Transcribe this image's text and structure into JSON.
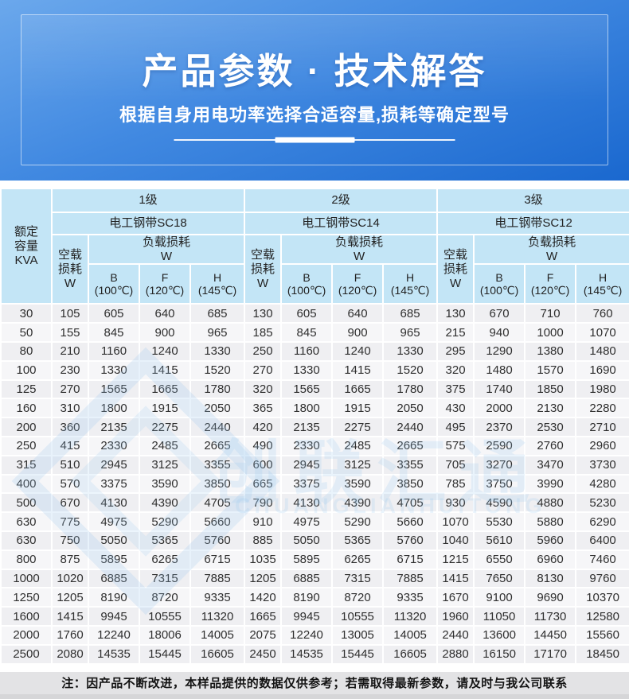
{
  "banner": {
    "title": "产品参数 · 技术解答",
    "subtitle": "根据自身用电功率选择合适容量,损耗等确定型号"
  },
  "colors": {
    "banner_blue_top": "#6BA8EC",
    "banner_blue_bottom": "#1A68CF",
    "table_header_blue": "#C3E5F6",
    "row_gray": "#EFEFF2",
    "note_bar_gray": "#E3E3E5"
  },
  "watermark": {
    "cn": "创联汇通",
    "en": "CHUANGLIANHUITONG"
  },
  "table": {
    "corner_header": {
      "line1": "额定",
      "line2": "容量",
      "line3": "KVA"
    },
    "groups": [
      {
        "level": "1级",
        "steel": "电工钢带SC18"
      },
      {
        "level": "2级",
        "steel": "电工钢带SC14"
      },
      {
        "level": "3级",
        "steel": "电工钢带SC12"
      }
    ],
    "no_load_header": {
      "line1": "空载",
      "line2": "损耗",
      "line3": "W"
    },
    "load_header": {
      "line1": "负载损耗",
      "line2": "W"
    },
    "temp_headers": [
      {
        "line1": "B",
        "line2": "(100℃)"
      },
      {
        "line1": "F",
        "line2": "(120℃)"
      },
      {
        "line1": "H",
        "line2": "(145℃)"
      }
    ],
    "rows": [
      {
        "kva": "30",
        "values": [
          "105",
          "605",
          "640",
          "685",
          "130",
          "605",
          "640",
          "685",
          "130",
          "670",
          "710",
          "760"
        ]
      },
      {
        "kva": "50",
        "values": [
          "155",
          "845",
          "900",
          "965",
          "185",
          "845",
          "900",
          "965",
          "215",
          "940",
          "1000",
          "1070"
        ]
      },
      {
        "kva": "80",
        "values": [
          "210",
          "1160",
          "1240",
          "1330",
          "250",
          "1160",
          "1240",
          "1330",
          "295",
          "1290",
          "1380",
          "1480"
        ]
      },
      {
        "kva": "100",
        "values": [
          "230",
          "1330",
          "1415",
          "1520",
          "270",
          "1330",
          "1415",
          "1520",
          "320",
          "1480",
          "1570",
          "1690"
        ]
      },
      {
        "kva": "125",
        "values": [
          "270",
          "1565",
          "1665",
          "1780",
          "320",
          "1565",
          "1665",
          "1780",
          "375",
          "1740",
          "1850",
          "1980"
        ]
      },
      {
        "kva": "160",
        "values": [
          "310",
          "1800",
          "1915",
          "2050",
          "365",
          "1800",
          "1915",
          "2050",
          "430",
          "2000",
          "2130",
          "2280"
        ]
      },
      {
        "kva": "200",
        "values": [
          "360",
          "2135",
          "2275",
          "2440",
          "420",
          "2135",
          "2275",
          "2440",
          "495",
          "2370",
          "2530",
          "2710"
        ]
      },
      {
        "kva": "250",
        "values": [
          "415",
          "2330",
          "2485",
          "2665",
          "490",
          "2330",
          "2485",
          "2665",
          "575",
          "2590",
          "2760",
          "2960"
        ]
      },
      {
        "kva": "315",
        "values": [
          "510",
          "2945",
          "3125",
          "3355",
          "600",
          "2945",
          "3125",
          "3355",
          "705",
          "3270",
          "3470",
          "3730"
        ]
      },
      {
        "kva": "400",
        "values": [
          "570",
          "3375",
          "3590",
          "3850",
          "665",
          "3375",
          "3590",
          "3850",
          "785",
          "3750",
          "3990",
          "4280"
        ]
      },
      {
        "kva": "500",
        "values": [
          "670",
          "4130",
          "4390",
          "4705",
          "790",
          "4130",
          "4390",
          "4705",
          "930",
          "4590",
          "4880",
          "5230"
        ]
      },
      {
        "kva": "630",
        "values": [
          "775",
          "4975",
          "5290",
          "5660",
          "910",
          "4975",
          "5290",
          "5660",
          "1070",
          "5530",
          "5880",
          "6290"
        ]
      },
      {
        "kva": "630",
        "values": [
          "750",
          "5050",
          "5365",
          "5760",
          "885",
          "5050",
          "5365",
          "5760",
          "1040",
          "5610",
          "5960",
          "6400"
        ]
      },
      {
        "kva": "800",
        "values": [
          "875",
          "5895",
          "6265",
          "6715",
          "1035",
          "5895",
          "6265",
          "6715",
          "1215",
          "6550",
          "6960",
          "7460"
        ]
      },
      {
        "kva": "1000",
        "values": [
          "1020",
          "6885",
          "7315",
          "7885",
          "1205",
          "6885",
          "7315",
          "7885",
          "1415",
          "7650",
          "8130",
          "9760"
        ]
      },
      {
        "kva": "1250",
        "values": [
          "1205",
          "8190",
          "8720",
          "9335",
          "1420",
          "8190",
          "8720",
          "9335",
          "1670",
          "9100",
          "9690",
          "10370"
        ]
      },
      {
        "kva": "1600",
        "values": [
          "1415",
          "9945",
          "10555",
          "11320",
          "1665",
          "9945",
          "10555",
          "11320",
          "1960",
          "11050",
          "11730",
          "12580"
        ]
      },
      {
        "kva": "2000",
        "values": [
          "1760",
          "12240",
          "18006",
          "14005",
          "2075",
          "12240",
          "13005",
          "14005",
          "2440",
          "13600",
          "14450",
          "15560"
        ]
      },
      {
        "kva": "2500",
        "values": [
          "2080",
          "14535",
          "15445",
          "16605",
          "2450",
          "14535",
          "15445",
          "16605",
          "2880",
          "16150",
          "17170",
          "18450"
        ]
      }
    ]
  },
  "note": "注：因产品不断改进，本样品提供的数据仅供参考；若需取得最新参数，请及时与我公司联系"
}
